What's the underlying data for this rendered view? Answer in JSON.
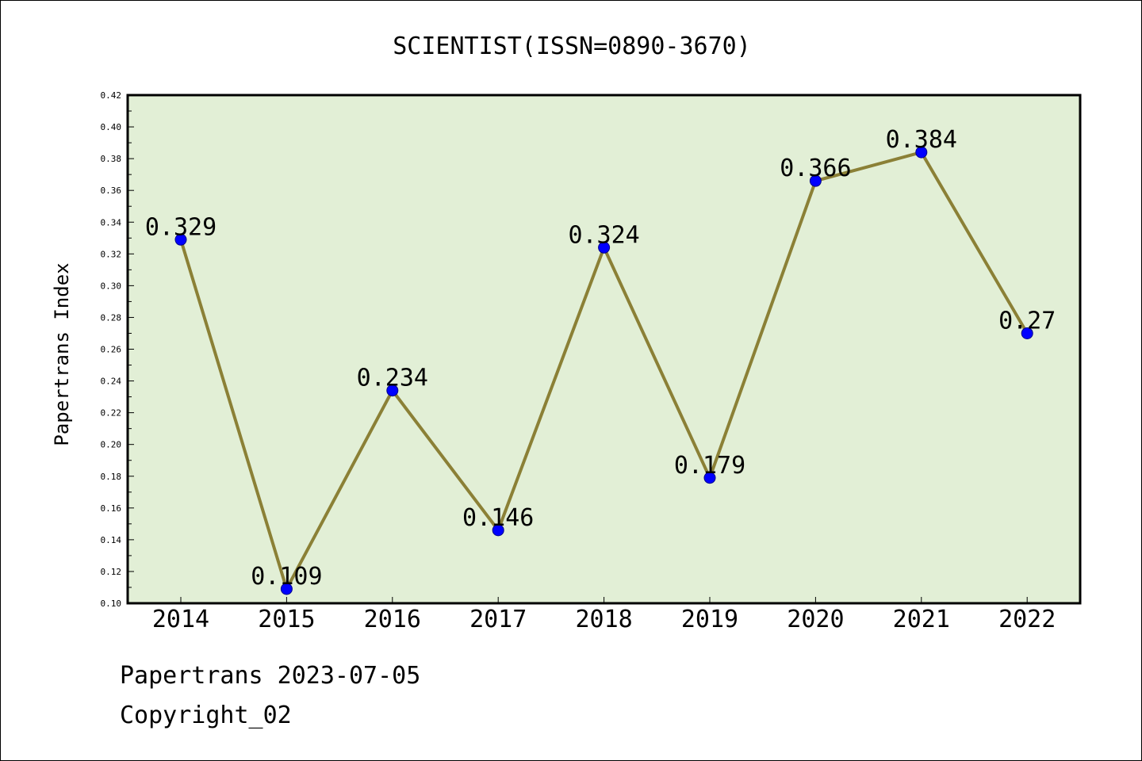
{
  "chart_data": {
    "type": "line",
    "title": "SCIENTIST(ISSN=0890-3670)",
    "xlabel": "",
    "ylabel": "Papertrans Index",
    "categories": [
      "2014",
      "2015",
      "2016",
      "2017",
      "2018",
      "2019",
      "2020",
      "2021",
      "2022"
    ],
    "values": [
      0.329,
      0.109,
      0.234,
      0.146,
      0.324,
      0.179,
      0.366,
      0.384,
      0.27
    ],
    "data_labels": [
      "0.329",
      "0.109",
      "0.234",
      "0.146",
      "0.324",
      "0.179",
      "0.366",
      "0.384",
      "0.27"
    ],
    "ylim": [
      0.1,
      0.42
    ],
    "yticks": [
      "0.10",
      "0.12",
      "0.14",
      "0.16",
      "0.18",
      "0.20",
      "0.22",
      "0.24",
      "0.26",
      "0.28",
      "0.30",
      "0.32",
      "0.34",
      "0.36",
      "0.38",
      "0.40",
      "0.42"
    ],
    "grid": false,
    "legend": "none",
    "colors": {
      "line": "#8B8036",
      "marker": "#0000FF",
      "plot_background": "#E2EFD6",
      "axes": "#000000"
    }
  },
  "footer": {
    "line1": "Papertrans 2023-07-05",
    "line2": "Copyright_02"
  }
}
